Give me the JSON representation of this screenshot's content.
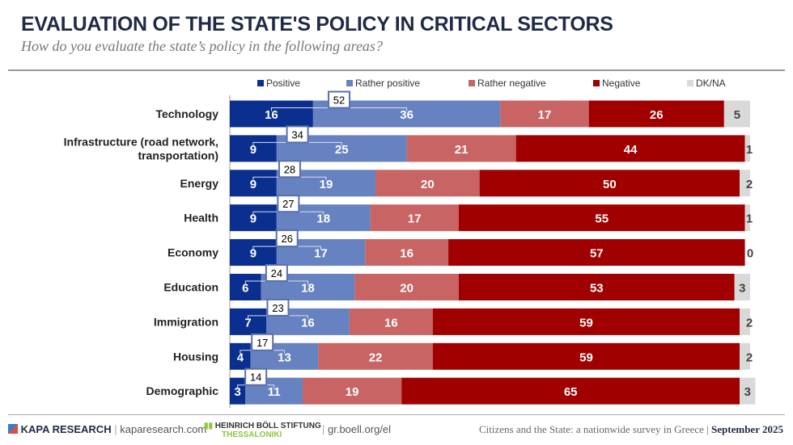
{
  "title": "EVALUATION OF THE STATE'S POLICY IN CRITICAL SECTORS",
  "subtitle": "How do you evaluate the state’s policy in the following areas?",
  "chart_data": {
    "type": "bar",
    "stacked": true,
    "orientation": "horizontal",
    "categories": [
      "Technology",
      "Infrastructure (road network, transportation)",
      "Energy",
      "Health",
      "Economy",
      "Education",
      "Immigration",
      "Housing",
      "Demographic"
    ],
    "series": [
      {
        "name": "Positive",
        "color": "#0b2f8f",
        "values": [
          16,
          9,
          9,
          9,
          9,
          6,
          7,
          4,
          3
        ]
      },
      {
        "name": "Rather positive",
        "color": "#6682c0",
        "values": [
          36,
          25,
          19,
          18,
          17,
          18,
          16,
          13,
          11
        ]
      },
      {
        "name": "Rather negative",
        "color": "#c86464",
        "values": [
          17,
          21,
          20,
          17,
          16,
          20,
          16,
          22,
          19
        ]
      },
      {
        "name": "Negative",
        "color": "#a00000",
        "values": [
          26,
          44,
          50,
          55,
          57,
          53,
          59,
          59,
          65
        ]
      },
      {
        "name": "DK/NA",
        "color": "#d9d9d9",
        "values": [
          5,
          1,
          2,
          1,
          0,
          3,
          2,
          2,
          3
        ]
      }
    ],
    "totals_positive": [
      52,
      34,
      28,
      27,
      26,
      24,
      23,
      17,
      14
    ],
    "legend": "top",
    "xlim": [
      0,
      100
    ]
  },
  "footer": {
    "brand": "KAPA RESEARCH",
    "brand_url": "kaparesearch.com",
    "partner": "HEINRICH BÖLL STIFTUNG",
    "partner_sub": "THESSALONIKI",
    "partner_url": "gr.boell.org/el",
    "survey": "Citizens and the State: a nationwide survey in Greece",
    "date": "September 2025"
  }
}
